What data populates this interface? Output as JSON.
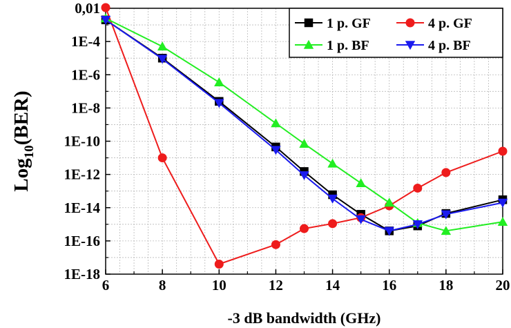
{
  "chart_data": {
    "type": "line",
    "title": "",
    "xlabel": "-3 dB bandwidth (GHz)",
    "ylabel_main": "Log",
    "ylabel_sub": "10",
    "ylabel_tail": "(BER)",
    "log_y": true,
    "xlim": [
      6,
      20
    ],
    "ylim_exp": [
      -18,
      -2
    ],
    "x_ticks": [
      6,
      8,
      10,
      12,
      14,
      16,
      18,
      20
    ],
    "x_tick_labels": [
      "6",
      "8",
      "10",
      "12",
      "14",
      "16",
      "18",
      "20"
    ],
    "y_ticks_exp": [
      -2,
      -4,
      -6,
      -8,
      -10,
      -12,
      -14,
      -16,
      -18
    ],
    "y_tick_labels": [
      "0,01",
      "1E-4",
      "1E-6",
      "1E-8",
      "1E-10",
      "1E-12",
      "1E-14",
      "1E-16",
      "1E-18"
    ],
    "grid": true,
    "legend_position": "top-right",
    "series": [
      {
        "name": "1 p. GF",
        "color": "#000000",
        "marker": "square",
        "x": [
          6,
          8,
          10,
          12,
          13,
          14,
          15,
          16,
          17,
          18,
          20
        ],
        "y": [
          0.002,
          1e-05,
          2.5e-08,
          4.5e-11,
          1.5e-12,
          6e-14,
          4e-15,
          4e-16,
          8e-16,
          4.5e-15,
          3e-14
        ]
      },
      {
        "name": "4 p. GF",
        "color": "#ee1c1c",
        "marker": "circle",
        "x": [
          6,
          8,
          10,
          12,
          13,
          14,
          15,
          16,
          17,
          18,
          20
        ],
        "y": [
          0.011,
          1e-11,
          4e-18,
          6e-17,
          5.5e-16,
          1.1e-15,
          2.5e-15,
          1.3e-14,
          1.5e-13,
          1.3e-12,
          2.5e-11
        ]
      },
      {
        "name": "1 p. BF",
        "color": "#22ee22",
        "marker": "triangle-up",
        "x": [
          6,
          8,
          10,
          12,
          13,
          14,
          15,
          16,
          17,
          18,
          20
        ],
        "y": [
          0.0025,
          5e-05,
          3.5e-07,
          1.2e-09,
          7e-11,
          4.5e-12,
          3e-13,
          2e-14,
          1.2e-15,
          4e-16,
          1.4e-15
        ]
      },
      {
        "name": "4 p. BF",
        "color": "#1a1aee",
        "marker": "triangle-down",
        "x": [
          6,
          8,
          10,
          12,
          13,
          14,
          15,
          16,
          17,
          18,
          20
        ],
        "y": [
          0.002,
          9e-06,
          2e-08,
          3e-11,
          9e-13,
          3.5e-14,
          2e-15,
          4e-16,
          1e-15,
          4e-15,
          2e-14
        ]
      }
    ]
  }
}
